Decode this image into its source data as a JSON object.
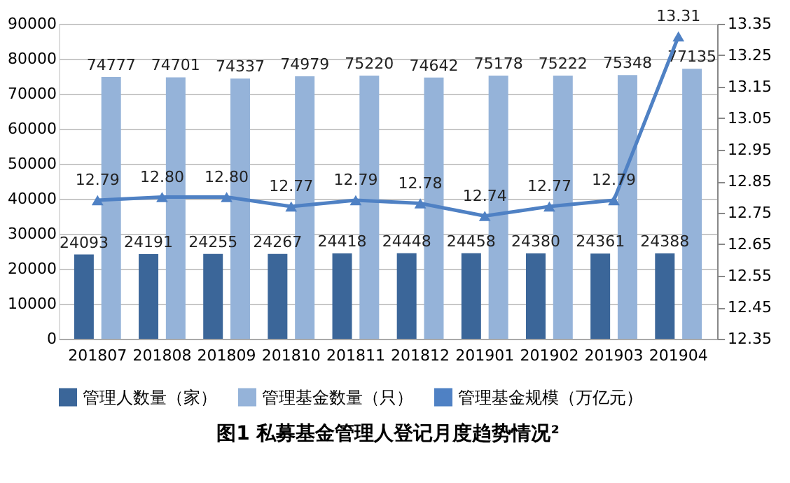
{
  "chart_data": {
    "type": "bar",
    "title": "图1  私募基金管理人登记月度趋势情况²",
    "categories": [
      "201807",
      "201808",
      "201809",
      "201810",
      "201811",
      "201812",
      "201901",
      "201902",
      "201903",
      "201904"
    ],
    "series": [
      {
        "name": "管理人数量（家）",
        "color": "#3b6699",
        "values": [
          24093,
          24191,
          24255,
          24267,
          24418,
          24448,
          24458,
          24380,
          24361,
          24388
        ]
      },
      {
        "name": "管理基金数量（只）",
        "color": "#95b3d9",
        "values": [
          74777,
          74701,
          74337,
          74979,
          75220,
          74642,
          75178,
          75222,
          75348,
          77135
        ]
      },
      {
        "name": "管理基金规模（万亿元）",
        "color": "#4f81c4",
        "type": "line",
        "axis": "y2",
        "marker": "triangle",
        "values": [
          12.79,
          12.8,
          12.8,
          12.77,
          12.79,
          12.78,
          12.74,
          12.77,
          12.79,
          13.31
        ],
        "value_labels": [
          "12.79",
          "12.80",
          "12.80",
          "12.77",
          "12.79",
          "12.78",
          "12.74",
          "12.77",
          "12.79",
          "13.31"
        ]
      }
    ],
    "ylim": [
      0,
      90000
    ],
    "yticks": [
      0,
      10000,
      20000,
      30000,
      40000,
      50000,
      60000,
      70000,
      80000,
      90000
    ],
    "y2lim": [
      12.35,
      13.35
    ],
    "y2ticks": [
      12.35,
      12.45,
      12.55,
      12.65,
      12.75,
      12.85,
      12.95,
      13.05,
      13.15,
      13.25,
      13.35
    ],
    "grid": "y",
    "legend": "bottom",
    "data_labels": true
  }
}
